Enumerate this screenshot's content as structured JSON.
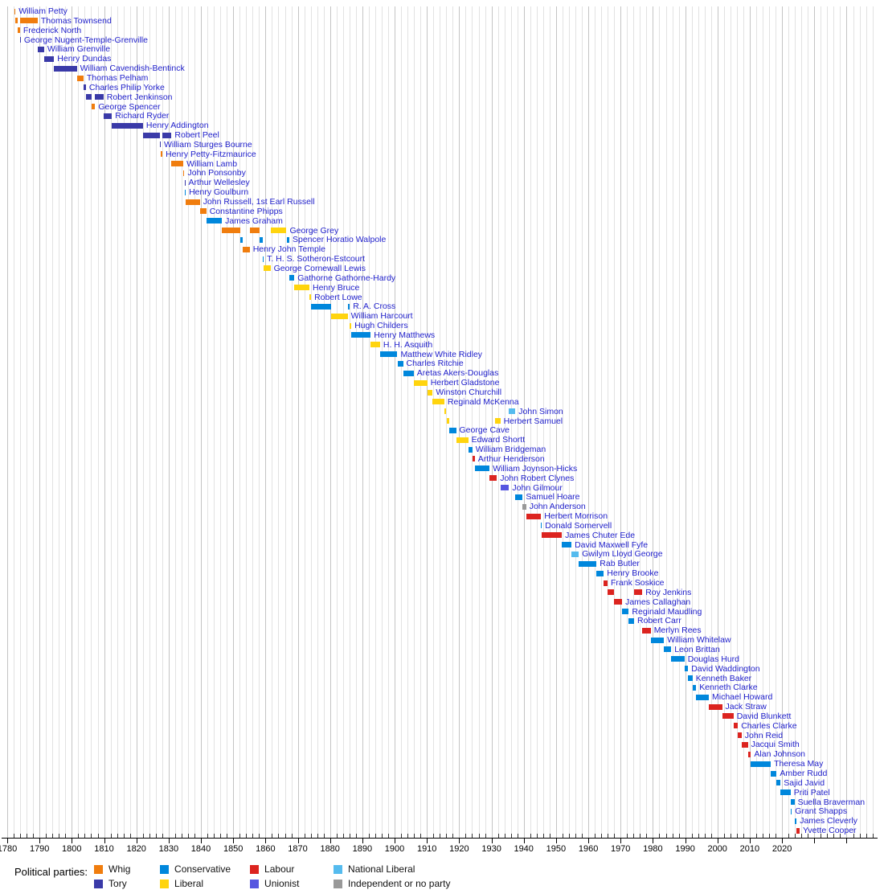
{
  "legend": {
    "title": "Political parties:"
  },
  "chart_data": {
    "type": "gantt",
    "title": "",
    "xlabel": "",
    "ylabel": "",
    "axis": {
      "unit": "year",
      "min": 1780,
      "max": 2026,
      "major_step": 10,
      "minor_step": 2,
      "tick_labels": [
        1780,
        1790,
        1800,
        1810,
        1820,
        1830,
        1840,
        1850,
        1860,
        1870,
        1880,
        1890,
        1900,
        1910,
        1920,
        1930,
        1940,
        1950,
        1960,
        1970,
        1980,
        1990,
        2000,
        2010,
        2020
      ],
      "grid": true
    },
    "parties": [
      {
        "id": "W",
        "label": "Whig",
        "color": "#F07D0E"
      },
      {
        "id": "T",
        "label": "Tory",
        "color": "#3A3AA8"
      },
      {
        "id": "C",
        "label": "Conservative",
        "color": "#0087DC"
      },
      {
        "id": "L",
        "label": "Liberal",
        "color": "#FFD40E"
      },
      {
        "id": "Lab",
        "label": "Labour",
        "color": "#DC241F"
      },
      {
        "id": "U",
        "label": "Unionist",
        "color": "#5656E0"
      },
      {
        "id": "NL",
        "label": "National Liberal",
        "color": "#55BBEE"
      },
      {
        "id": "I",
        "label": "Independent or no party",
        "color": "#999999"
      }
    ],
    "people": [
      {
        "name": "William Petty",
        "terms": [
          [
            1782.21,
            1782.54,
            "W"
          ]
        ]
      },
      {
        "name": "Thomas Townsend",
        "terms": [
          [
            1782.54,
            1783.27,
            "W"
          ],
          [
            1783.98,
            1789.44,
            "W"
          ]
        ]
      },
      {
        "name": "Frederick North",
        "terms": [
          [
            1783.27,
            1783.96,
            "W"
          ]
        ]
      },
      {
        "name": "George Nugent-Temple-Grenville",
        "terms": [
          [
            1783.96,
            1784.0,
            "T"
          ]
        ]
      },
      {
        "name": "William Grenville",
        "terms": [
          [
            1789.44,
            1791.43,
            "T"
          ]
        ]
      },
      {
        "name": "Henry Dundas",
        "terms": [
          [
            1791.43,
            1794.52,
            "T"
          ]
        ]
      },
      {
        "name": "William Cavendish-Bentinck",
        "terms": [
          [
            1794.52,
            1801.57,
            "T"
          ]
        ]
      },
      {
        "name": "Thomas Pelham",
        "terms": [
          [
            1801.57,
            1803.63,
            "W"
          ]
        ]
      },
      {
        "name": "Charles Philip Yorke",
        "terms": [
          [
            1803.63,
            1804.37,
            "T"
          ]
        ]
      },
      {
        "name": "Robert Jenkinson",
        "terms": [
          [
            1804.37,
            1806.09,
            "T"
          ],
          [
            1807.24,
            1809.83,
            "T"
          ]
        ]
      },
      {
        "name": "George Spencer",
        "terms": [
          [
            1806.09,
            1807.24,
            "W"
          ]
        ]
      },
      {
        "name": "Richard Ryder",
        "terms": [
          [
            1809.83,
            1812.44,
            "T"
          ]
        ]
      },
      {
        "name": "Henry Addington",
        "terms": [
          [
            1812.44,
            1822.04,
            "T"
          ]
        ]
      },
      {
        "name": "Robert Peel",
        "terms": [
          [
            1822.04,
            1827.3,
            "T"
          ],
          [
            1828.07,
            1830.89,
            "T"
          ]
        ]
      },
      {
        "name": "William Sturges Bourne",
        "terms": [
          [
            1827.3,
            1827.54,
            "T"
          ]
        ]
      },
      {
        "name": "Henry Petty-Fitzmaurice",
        "terms": [
          [
            1827.54,
            1828.07,
            "W"
          ]
        ]
      },
      {
        "name": "William Lamb",
        "terms": [
          [
            1830.89,
            1834.54,
            "W"
          ]
        ]
      },
      {
        "name": "John Ponsonby",
        "terms": [
          [
            1834.54,
            1834.88,
            "W"
          ]
        ]
      },
      {
        "name": "Arthur Wellesley",
        "terms": [
          [
            1834.88,
            1834.94,
            "T"
          ]
        ]
      },
      {
        "name": "Henry Goulburn",
        "terms": [
          [
            1834.94,
            1835.29,
            "C"
          ]
        ]
      },
      {
        "name": "John Russell, 1st Earl Russell",
        "terms": [
          [
            1835.29,
            1839.66,
            "W"
          ]
        ]
      },
      {
        "name": "Constantine Phipps",
        "terms": [
          [
            1839.66,
            1841.67,
            "W"
          ]
        ]
      },
      {
        "name": "James Graham",
        "terms": [
          [
            1841.67,
            1846.5,
            "C"
          ]
        ]
      },
      {
        "name": "George Grey",
        "terms": [
          [
            1846.5,
            1852.14,
            "W"
          ],
          [
            1855.1,
            1858.16,
            "W"
          ],
          [
            1861.56,
            1866.5,
            "L"
          ]
        ]
      },
      {
        "name": "Spencer Horatio Walpole",
        "terms": [
          [
            1852.14,
            1852.96,
            "C"
          ],
          [
            1858.16,
            1859.17,
            "C"
          ],
          [
            1866.5,
            1867.38,
            "C"
          ]
        ]
      },
      {
        "name": "Henry John Temple",
        "terms": [
          [
            1852.96,
            1855.1,
            "W"
          ]
        ]
      },
      {
        "name": "T. H. S. Sotheron-Estcourt",
        "terms": [
          [
            1859.17,
            1859.44,
            "C"
          ]
        ]
      },
      {
        "name": "George Cornewall Lewis",
        "terms": [
          [
            1859.44,
            1861.56,
            "L"
          ]
        ]
      },
      {
        "name": "Gathorne Gathorne-Hardy",
        "terms": [
          [
            1867.38,
            1868.92,
            "C"
          ]
        ]
      },
      {
        "name": "Henry Bruce",
        "terms": [
          [
            1868.92,
            1873.6,
            "L"
          ]
        ]
      },
      {
        "name": "Robert Lowe",
        "terms": [
          [
            1873.6,
            1874.13,
            "L"
          ]
        ]
      },
      {
        "name": "R. A. Cross",
        "terms": [
          [
            1874.13,
            1880.3,
            "C"
          ],
          [
            1885.46,
            1886.09,
            "C"
          ]
        ]
      },
      {
        "name": "William Harcourt",
        "terms": [
          [
            1880.3,
            1885.46,
            "L"
          ]
        ]
      },
      {
        "name": "Hugh Childers",
        "terms": [
          [
            1886.09,
            1886.58,
            "L"
          ]
        ]
      },
      {
        "name": "Henry Matthews",
        "terms": [
          [
            1886.58,
            1892.6,
            "C"
          ]
        ]
      },
      {
        "name": "H. H. Asquith",
        "terms": [
          [
            1892.6,
            1895.48,
            "L"
          ]
        ]
      },
      {
        "name": "Matthew White Ridley",
        "terms": [
          [
            1895.48,
            1900.85,
            "C"
          ]
        ]
      },
      {
        "name": "Charles Ritchie",
        "terms": [
          [
            1900.85,
            1902.6,
            "C"
          ]
        ]
      },
      {
        "name": "Aretas Akers-Douglas",
        "terms": [
          [
            1902.6,
            1905.92,
            "C"
          ]
        ]
      },
      {
        "name": "Herbert Gladstone",
        "terms": [
          [
            1905.92,
            1910.12,
            "L"
          ]
        ]
      },
      {
        "name": "Winston Churchill",
        "terms": [
          [
            1910.12,
            1911.79,
            "L"
          ]
        ]
      },
      {
        "name": "Reginald McKenna",
        "terms": [
          [
            1911.79,
            1915.4,
            "L"
          ]
        ]
      },
      {
        "name": "John Simon",
        "terms": [
          [
            1915.4,
            1916.04,
            "L"
          ],
          [
            1935.44,
            1937.41,
            "NL"
          ]
        ]
      },
      {
        "name": "Herbert Samuel",
        "terms": [
          [
            1916.04,
            1916.92,
            "L"
          ],
          [
            1931.2,
            1932.74,
            "L"
          ]
        ]
      },
      {
        "name": "George Cave",
        "terms": [
          [
            1916.92,
            1919.04,
            "C"
          ]
        ]
      },
      {
        "name": "Edward Shortt",
        "terms": [
          [
            1919.04,
            1922.8,
            "L"
          ]
        ]
      },
      {
        "name": "William Bridgeman",
        "terms": [
          [
            1922.8,
            1924.06,
            "C"
          ]
        ]
      },
      {
        "name": "Arthur Henderson",
        "terms": [
          [
            1924.06,
            1924.84,
            "Lab"
          ]
        ]
      },
      {
        "name": "William Joynson-Hicks",
        "terms": [
          [
            1924.84,
            1929.42,
            "C"
          ]
        ]
      },
      {
        "name": "John Robert Clynes",
        "terms": [
          [
            1929.42,
            1931.66,
            "Lab"
          ]
        ]
      },
      {
        "name": "John Gilmour",
        "terms": [
          [
            1932.74,
            1935.44,
            "U"
          ]
        ]
      },
      {
        "name": "Samuel Hoare",
        "terms": [
          [
            1937.41,
            1939.67,
            "C"
          ]
        ]
      },
      {
        "name": "John Anderson",
        "terms": [
          [
            1939.67,
            1940.75,
            "I"
          ]
        ]
      },
      {
        "name": "Herbert Morrison",
        "terms": [
          [
            1940.75,
            1945.38,
            "Lab"
          ]
        ]
      },
      {
        "name": "Donald Somervell",
        "terms": [
          [
            1945.38,
            1945.57,
            "C"
          ]
        ]
      },
      {
        "name": "James Chuter Ede",
        "terms": [
          [
            1945.57,
            1951.8,
            "Lab"
          ]
        ]
      },
      {
        "name": "David Maxwell Fyfe",
        "terms": [
          [
            1951.8,
            1954.79,
            "C"
          ]
        ]
      },
      {
        "name": "Gwilym Lloyd George",
        "terms": [
          [
            1954.79,
            1957.04,
            "NL"
          ]
        ]
      },
      {
        "name": "Rab Butler",
        "terms": [
          [
            1957.04,
            1962.54,
            "C"
          ]
        ]
      },
      {
        "name": "Henry Brooke",
        "terms": [
          [
            1962.54,
            1964.79,
            "C"
          ]
        ]
      },
      {
        "name": "Frank Soskice",
        "terms": [
          [
            1964.79,
            1965.96,
            "Lab"
          ]
        ]
      },
      {
        "name": "Roy Jenkins",
        "terms": [
          [
            1965.96,
            1967.9,
            "Lab"
          ],
          [
            1974.17,
            1976.71,
            "Lab"
          ]
        ]
      },
      {
        "name": "James Callaghan",
        "terms": [
          [
            1967.9,
            1970.46,
            "Lab"
          ]
        ]
      },
      {
        "name": "Reginald Maudling",
        "terms": [
          [
            1970.46,
            1972.54,
            "C"
          ]
        ]
      },
      {
        "name": "Robert Carr",
        "terms": [
          [
            1972.54,
            1974.17,
            "C"
          ]
        ]
      },
      {
        "name": "Merlyn Rees",
        "terms": [
          [
            1976.71,
            1979.34,
            "Lab"
          ]
        ]
      },
      {
        "name": "William Whitelaw",
        "terms": [
          [
            1979.34,
            1983.44,
            "C"
          ]
        ]
      },
      {
        "name": "Leon Brittan",
        "terms": [
          [
            1983.44,
            1985.67,
            "C"
          ]
        ]
      },
      {
        "name": "Douglas Hurd",
        "terms": [
          [
            1985.67,
            1989.8,
            "C"
          ]
        ]
      },
      {
        "name": "David Waddington",
        "terms": [
          [
            1989.8,
            1990.9,
            "C"
          ]
        ]
      },
      {
        "name": "Kenneth Baker",
        "terms": [
          [
            1990.9,
            1992.27,
            "C"
          ]
        ]
      },
      {
        "name": "Kenneth Clarke",
        "terms": [
          [
            1992.27,
            1993.4,
            "C"
          ]
        ]
      },
      {
        "name": "Michael Howard",
        "terms": [
          [
            1993.4,
            1997.33,
            "C"
          ]
        ]
      },
      {
        "name": "Jack Straw",
        "terms": [
          [
            1997.33,
            2001.44,
            "Lab"
          ]
        ]
      },
      {
        "name": "David Blunkett",
        "terms": [
          [
            2001.44,
            2004.96,
            "Lab"
          ]
        ]
      },
      {
        "name": "Charles Clarke",
        "terms": [
          [
            2004.96,
            2006.34,
            "Lab"
          ]
        ]
      },
      {
        "name": "John Reid",
        "terms": [
          [
            2006.34,
            2007.49,
            "Lab"
          ]
        ]
      },
      {
        "name": "Jacqui Smith",
        "terms": [
          [
            2007.49,
            2009.42,
            "Lab"
          ]
        ]
      },
      {
        "name": "Alan Johnson",
        "terms": [
          [
            2009.42,
            2010.36,
            "Lab"
          ]
        ]
      },
      {
        "name": "Theresa May",
        "terms": [
          [
            2010.36,
            2016.53,
            "C"
          ]
        ]
      },
      {
        "name": "Amber Rudd",
        "terms": [
          [
            2016.53,
            2018.33,
            "C"
          ]
        ]
      },
      {
        "name": "Sajid Javid",
        "terms": [
          [
            2018.33,
            2019.56,
            "C"
          ]
        ]
      },
      {
        "name": "Priti Patel",
        "terms": [
          [
            2019.56,
            2022.68,
            "C"
          ]
        ]
      },
      {
        "name": "Suella Braverman",
        "terms": [
          [
            2022.68,
            2022.8,
            "C"
          ],
          [
            2022.82,
            2023.87,
            "C"
          ]
        ]
      },
      {
        "name": "Grant Shapps",
        "terms": [
          [
            2022.8,
            2022.82,
            "C"
          ]
        ]
      },
      {
        "name": "James Cleverly",
        "terms": [
          [
            2023.87,
            2024.51,
            "C"
          ]
        ]
      },
      {
        "name": "Yvette Cooper",
        "terms": [
          [
            2024.51,
            2025.45,
            "Lab"
          ]
        ]
      }
    ]
  }
}
